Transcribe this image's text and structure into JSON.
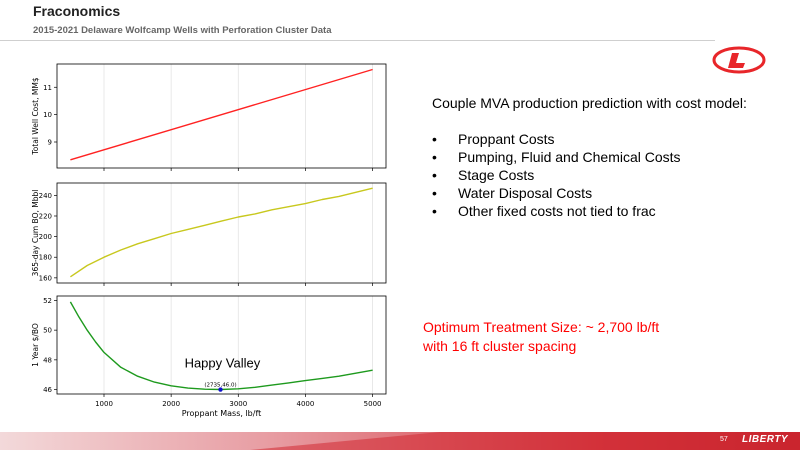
{
  "header": {
    "title": "Fraconomics",
    "subtitle": "2015-2021 Delaware Wolfcamp Wells with Perforation Cluster Data"
  },
  "logo": {
    "icon": "liberty-l-logo-icon",
    "color": "#e8262a"
  },
  "right_panel": {
    "heading": "Couple MVA production prediction with cost model:",
    "bullets": [
      "Proppant Costs",
      "Pumping, Fluid and Chemical Costs",
      "Stage Costs",
      "Water Disposal Costs",
      "Other fixed costs not tied to frac"
    ],
    "bullet_char": "•"
  },
  "optimum": {
    "line1": "Optimum Treatment Size: ~ 2,700 lb/ft",
    "line2": "with 16 ft cluster spacing",
    "color": "#ff0000"
  },
  "footer": {
    "page_number": "57",
    "brand": "LIBERTY",
    "color": "#cc2027"
  },
  "chart_data": [
    {
      "type": "line",
      "ylabel": "Total Well Cost, MM$",
      "xlabel": "",
      "xlim": [
        300,
        5200
      ],
      "ylim": [
        8.05,
        11.85
      ],
      "yticks": [
        9,
        10,
        11
      ],
      "xticks": [
        1000,
        2000,
        3000,
        4000,
        5000
      ],
      "show_xtick_labels": false,
      "grid": "vertical",
      "series": [
        {
          "color": "#ff2222",
          "x": [
            500,
            5000
          ],
          "y": [
            8.35,
            11.65
          ]
        }
      ]
    },
    {
      "type": "line",
      "ylabel": "365-day Cum BO, Mbbl",
      "xlabel": "",
      "xlim": [
        300,
        5200
      ],
      "ylim": [
        155,
        252
      ],
      "yticks": [
        160,
        180,
        200,
        220,
        240
      ],
      "xticks": [
        1000,
        2000,
        3000,
        4000,
        5000
      ],
      "show_xtick_labels": false,
      "grid": "vertical",
      "series": [
        {
          "color": "#c8c81e",
          "x": [
            500,
            750,
            1000,
            1250,
            1500,
            1750,
            2000,
            2250,
            2500,
            2750,
            3000,
            3250,
            3500,
            3750,
            4000,
            4250,
            4500,
            4750,
            5000
          ],
          "y": [
            161,
            172,
            180,
            187,
            193,
            198,
            203,
            207,
            211,
            215,
            219,
            222,
            226,
            229,
            232,
            236,
            239,
            243,
            247
          ]
        }
      ]
    },
    {
      "type": "line",
      "ylabel": "1 Year $/BO",
      "xlabel": "Proppant Mass, lb/ft",
      "xlim": [
        300,
        5200
      ],
      "ylim": [
        45.7,
        52.3
      ],
      "yticks": [
        46,
        48,
        50,
        52
      ],
      "xticks": [
        1000,
        2000,
        3000,
        4000,
        5000
      ],
      "show_xtick_labels": true,
      "grid": "vertical",
      "series": [
        {
          "color": "#1e9a1e",
          "x": [
            500,
            625,
            750,
            875,
            1000,
            1250,
            1500,
            1750,
            2000,
            2250,
            2500,
            2735,
            3000,
            3250,
            3500,
            3750,
            4000,
            4250,
            4500,
            4750,
            5000
          ],
          "y": [
            51.9,
            50.9,
            50.0,
            49.2,
            48.5,
            47.5,
            46.9,
            46.5,
            46.25,
            46.1,
            46.02,
            46.0,
            46.05,
            46.15,
            46.3,
            46.45,
            46.6,
            46.75,
            46.9,
            47.1,
            47.3
          ]
        }
      ],
      "point": {
        "x": 2735,
        "y": 46.0,
        "label": "(2735,46.0)",
        "color": "#1010cc"
      },
      "annotation": {
        "text": "Happy Valley",
        "x": 2200,
        "y": 47.5
      }
    }
  ]
}
